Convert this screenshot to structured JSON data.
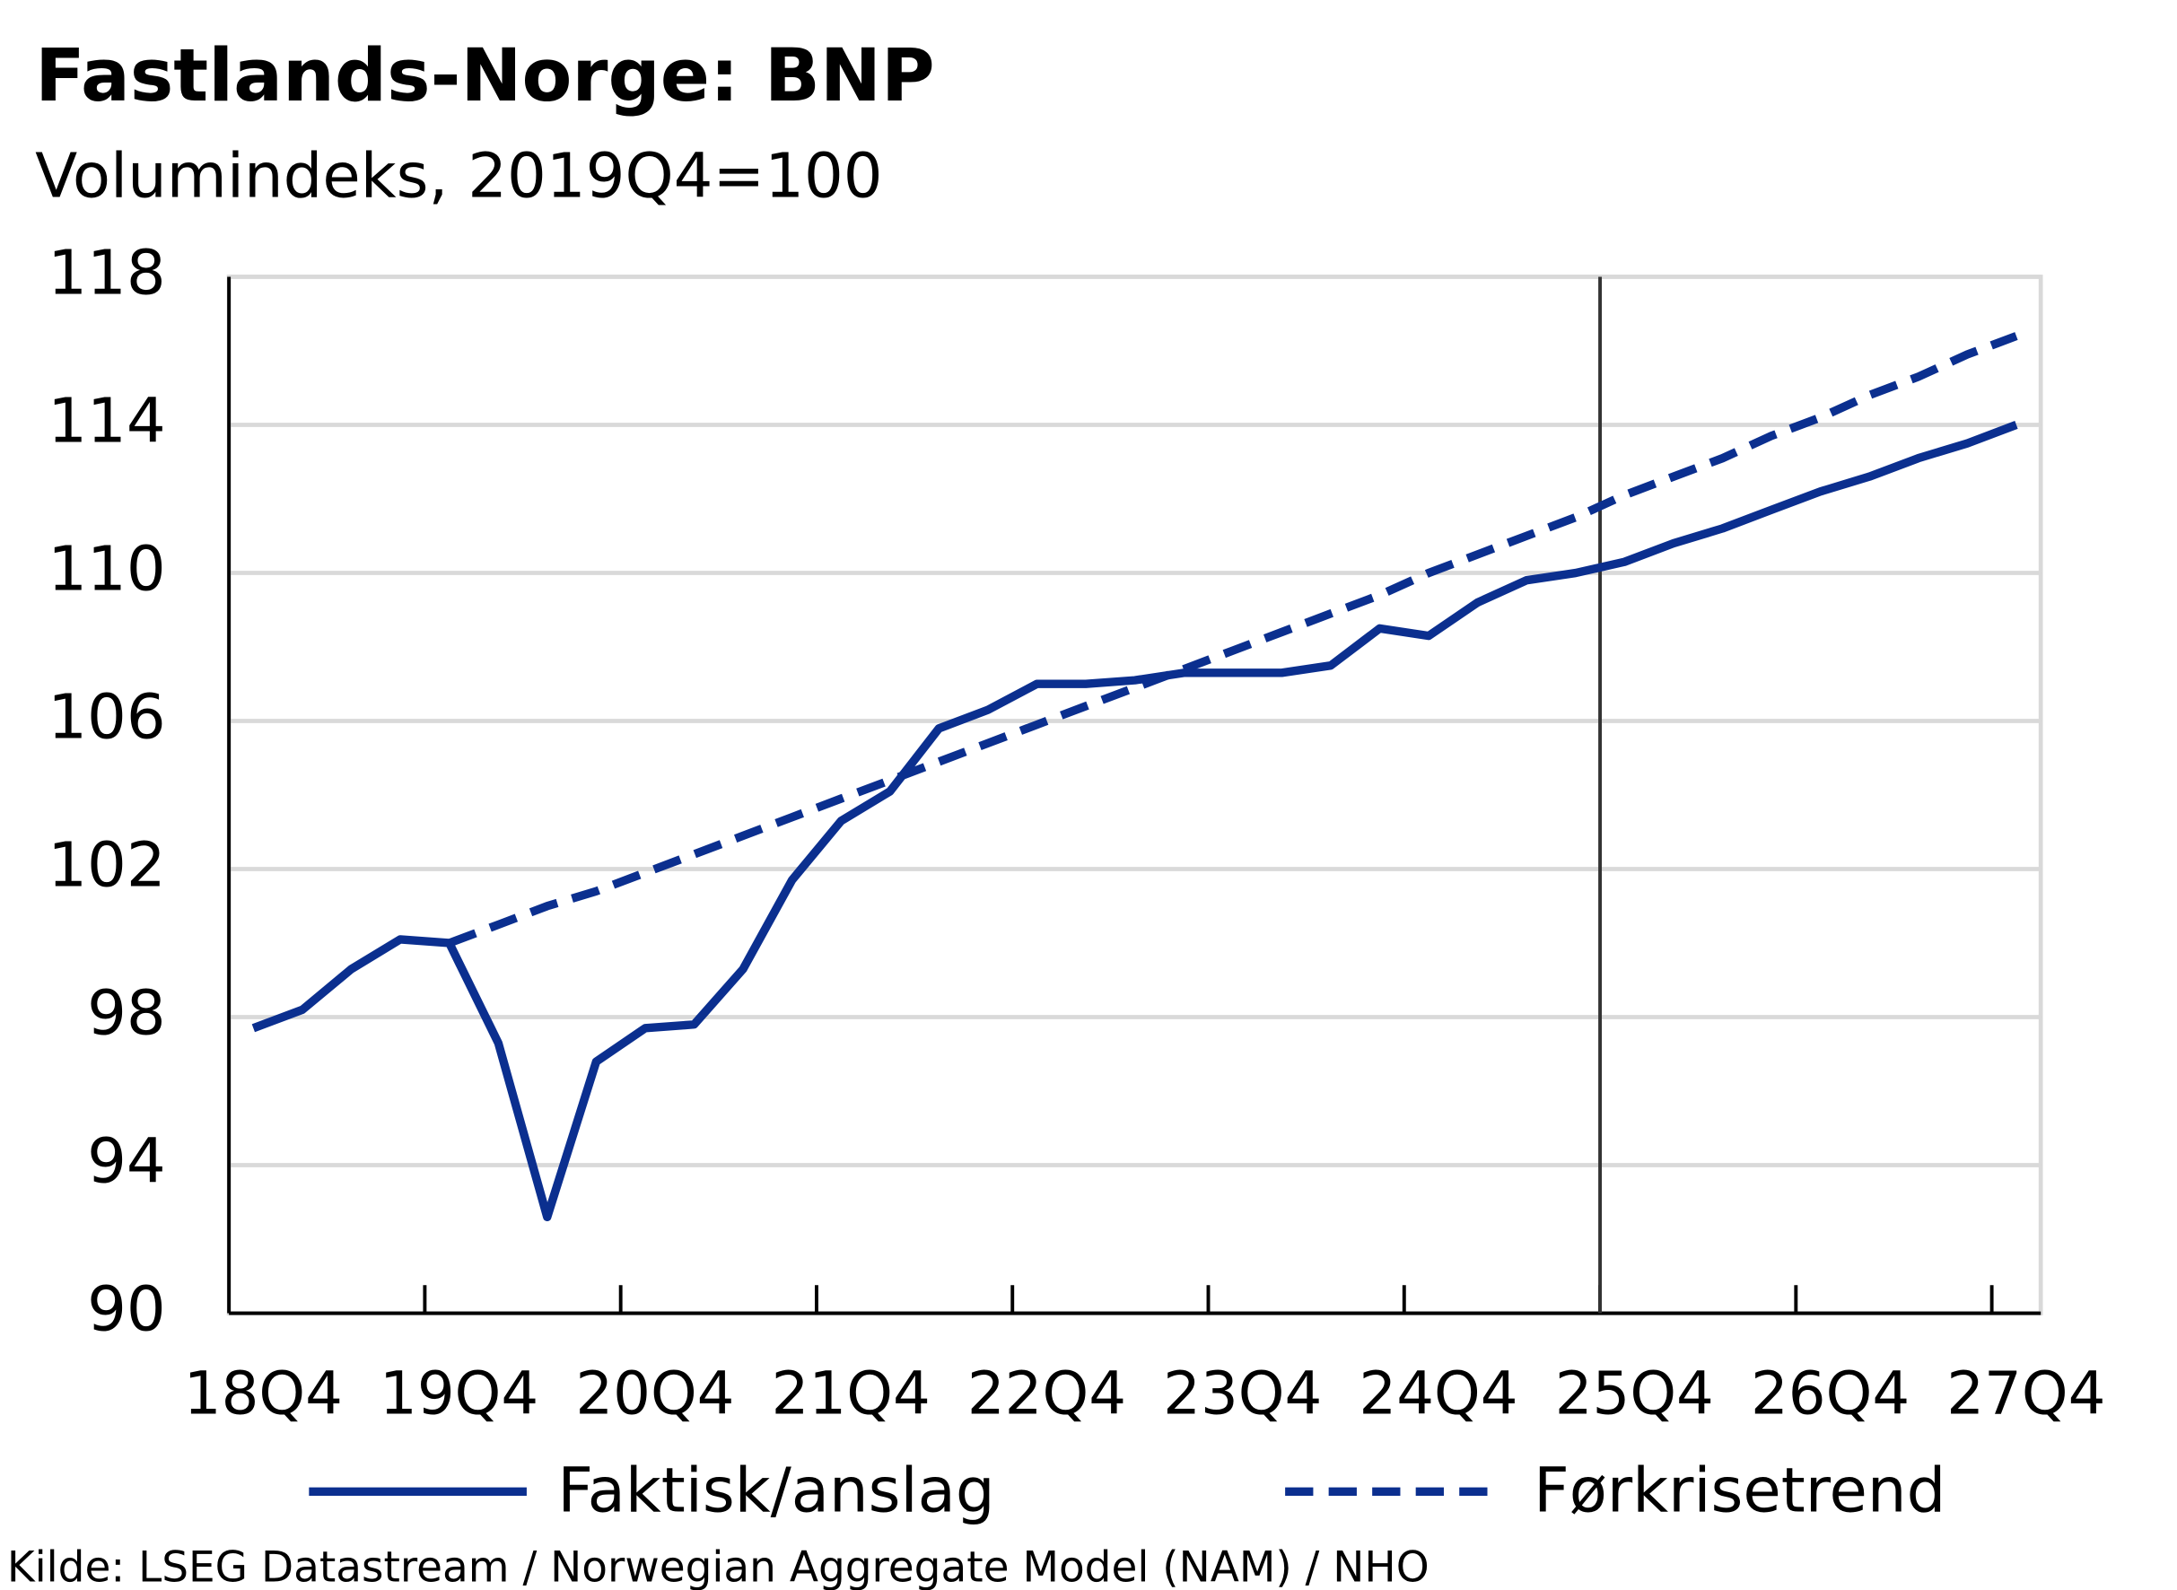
{
  "chart_data": {
    "type": "line",
    "title": "Fastlands-Norge: BNP",
    "subtitle": "Volumindeks, 2019Q4=100",
    "source": "Kilde: LSEG Datastream / Norwegian Aggregate Model (NAM) / NHO",
    "categories": [
      "18Q4",
      null,
      null,
      null,
      "19Q4",
      null,
      null,
      null,
      "20Q4",
      null,
      null,
      null,
      "21Q4",
      null,
      null,
      null,
      "22Q4",
      null,
      null,
      null,
      "23Q4",
      null,
      null,
      null,
      "24Q4",
      null,
      null,
      null,
      "25Q4",
      null,
      null,
      null,
      "26Q4",
      null,
      null,
      null,
      "27Q4"
    ],
    "series": [
      {
        "name": "Faktisk/anslag",
        "color": "#0b2f8f",
        "style": "solid",
        "values": [
          97.7,
          98.2,
          99.3,
          100.1,
          100.0,
          97.3,
          92.6,
          96.8,
          97.7,
          97.8,
          99.3,
          101.7,
          103.3,
          104.1,
          105.8,
          106.3,
          107.0,
          107.0,
          107.1,
          107.3,
          107.3,
          107.3,
          107.5,
          108.5,
          108.3,
          109.2,
          109.8,
          110.0,
          110.3,
          110.8,
          111.2,
          111.7,
          112.2,
          112.6,
          113.1,
          113.5,
          114.0
        ]
      },
      {
        "name": "Førkrisetrend",
        "color": "#0b2f8f",
        "style": "dashed",
        "values": [
          null,
          null,
          null,
          null,
          100.0,
          100.5,
          101.0,
          101.4,
          101.9,
          102.4,
          102.9,
          103.4,
          103.9,
          104.4,
          104.9,
          105.4,
          105.9,
          106.4,
          106.9,
          107.4,
          107.9,
          108.4,
          108.9,
          109.4,
          110.0,
          110.5,
          111.0,
          111.5,
          112.1,
          112.6,
          113.1,
          113.7,
          114.2,
          114.8,
          115.3,
          115.9,
          116.4
        ]
      }
    ],
    "ylim": [
      90,
      118
    ],
    "yticks": [
      90,
      94,
      98,
      102,
      106,
      110,
      114,
      118
    ],
    "grid": true
  }
}
